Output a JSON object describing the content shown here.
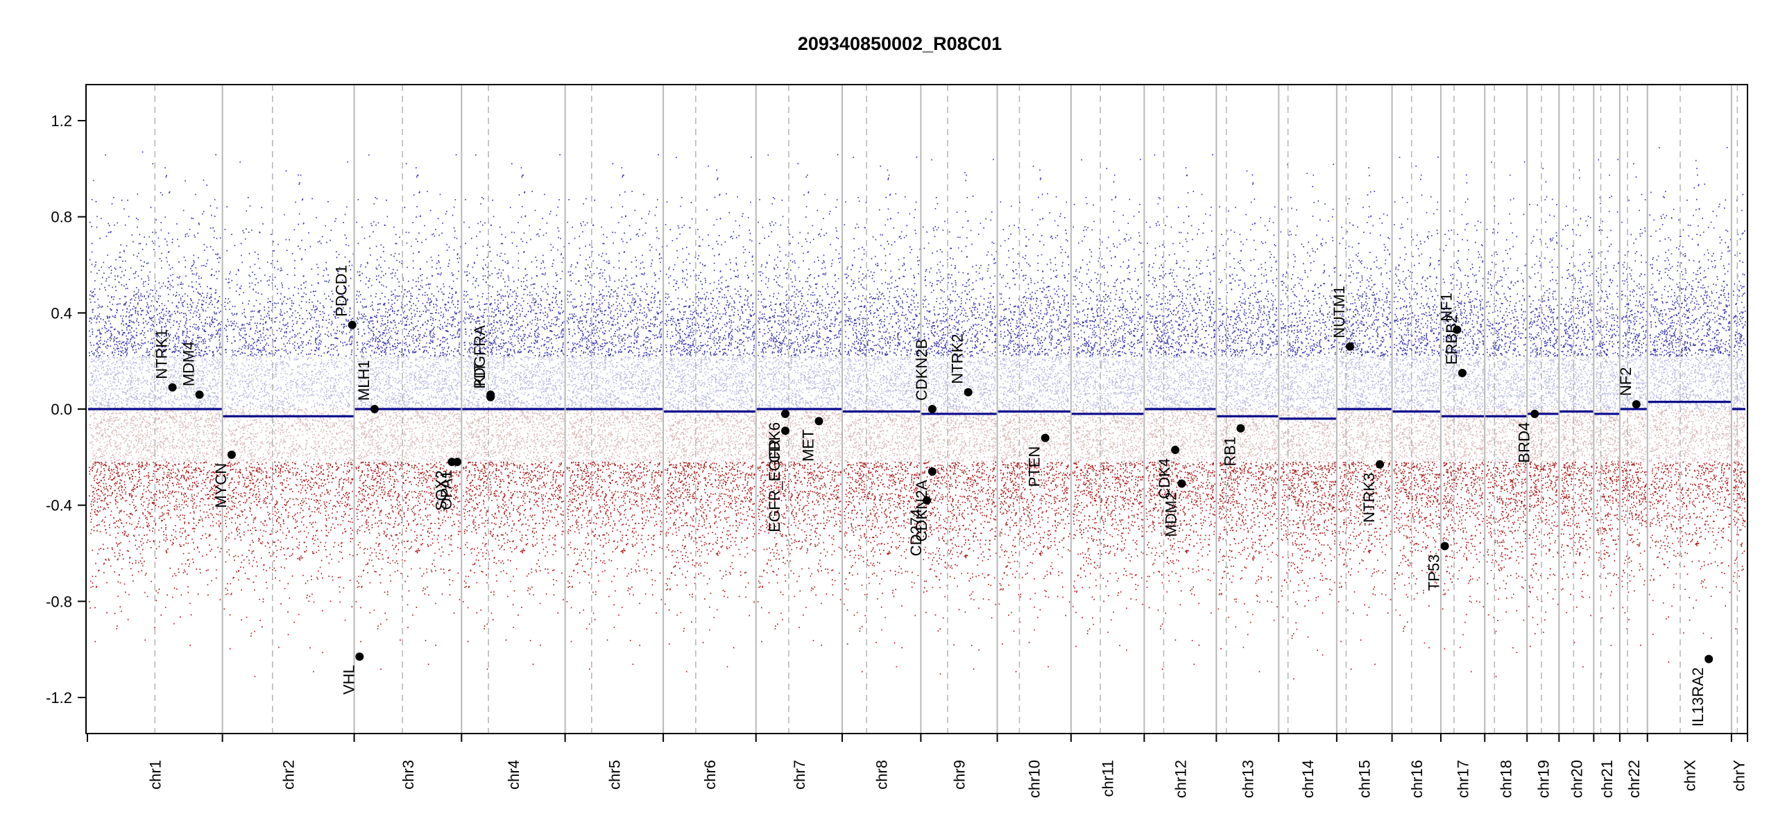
{
  "chart_data": {
    "type": "scatter",
    "title": "209340850002_R08C01",
    "ylim": [
      -1.35,
      1.35
    ],
    "yticks": [
      -1.2,
      -0.8,
      -0.4,
      0.0,
      0.4,
      0.8,
      1.2
    ],
    "ytick_labels": [
      "-1.2",
      "-0.8",
      "-0.4",
      "0.0",
      "0.4",
      "0.8",
      "1.2"
    ],
    "colors": {
      "gain": "#3b3bb3",
      "loss": "#b02020",
      "segment": "#0a0a8c",
      "gene": "#000000",
      "separator": "#b8b8b8",
      "centromere": "#b8b8b8"
    },
    "chromosomes": [
      {
        "name": "chr1",
        "length": 249,
        "centromere": 0.5,
        "segment": 0.0
      },
      {
        "name": "chr2",
        "length": 243,
        "centromere": 0.38,
        "segment": -0.03
      },
      {
        "name": "chr3",
        "length": 198,
        "centromere": 0.45,
        "segment": 0.0
      },
      {
        "name": "chr4",
        "length": 191,
        "centromere": 0.26,
        "segment": 0.0
      },
      {
        "name": "chr5",
        "length": 181,
        "centromere": 0.27,
        "segment": 0.0
      },
      {
        "name": "chr6",
        "length": 171,
        "centromere": 0.35,
        "segment": -0.01
      },
      {
        "name": "chr7",
        "length": 159,
        "centromere": 0.38,
        "segment": 0.0
      },
      {
        "name": "chr8",
        "length": 145,
        "centromere": 0.31,
        "segment": -0.01
      },
      {
        "name": "chr9",
        "length": 141,
        "centromere": 0.35,
        "segment": -0.02
      },
      {
        "name": "chr10",
        "length": 136,
        "centromere": 0.3,
        "segment": -0.01
      },
      {
        "name": "chr11",
        "length": 135,
        "centromere": 0.4,
        "segment": -0.02
      },
      {
        "name": "chr12",
        "length": 133,
        "centromere": 0.27,
        "segment": 0.0
      },
      {
        "name": "chr13",
        "length": 115,
        "centromere": 0.16,
        "segment": -0.03
      },
      {
        "name": "chr14",
        "length": 107,
        "centromere": 0.16,
        "segment": -0.04
      },
      {
        "name": "chr15",
        "length": 102,
        "centromere": 0.17,
        "segment": 0.0
      },
      {
        "name": "chr16",
        "length": 90,
        "centromere": 0.4,
        "segment": -0.01
      },
      {
        "name": "chr17",
        "length": 81,
        "centromere": 0.3,
        "segment": -0.03
      },
      {
        "name": "chr18",
        "length": 78,
        "centromere": 0.23,
        "segment": -0.03
      },
      {
        "name": "chr19",
        "length": 59,
        "centromere": 0.45,
        "segment": -0.02
      },
      {
        "name": "chr20",
        "length": 64,
        "centromere": 0.42,
        "segment": -0.01
      },
      {
        "name": "chr21",
        "length": 48,
        "centromere": 0.27,
        "segment": -0.02
      },
      {
        "name": "chr22",
        "length": 51,
        "centromere": 0.28,
        "segment": 0.0
      },
      {
        "name": "chrX",
        "length": 155,
        "centromere": 0.39,
        "segment": 0.03
      },
      {
        "name": "chrY",
        "length": 27,
        "centromere": 0.4,
        "segment": 0.0
      }
    ],
    "genes": [
      {
        "name": "NTRK1",
        "chr": "chr1",
        "pos": 0.63,
        "value": 0.09
      },
      {
        "name": "MDM4",
        "chr": "chr1",
        "pos": 0.83,
        "value": 0.06
      },
      {
        "name": "MYCN",
        "chr": "chr2",
        "pos": 0.07,
        "value": -0.19
      },
      {
        "name": "PDCD1",
        "chr": "chr2",
        "pos": 0.985,
        "value": 0.35
      },
      {
        "name": "VHL",
        "chr": "chr3",
        "pos": 0.05,
        "value": -1.03
      },
      {
        "name": "MLH1",
        "chr": "chr3",
        "pos": 0.19,
        "value": 0.0
      },
      {
        "name": "SOX2",
        "chr": "chr3",
        "pos": 0.91,
        "value": -0.22
      },
      {
        "name": "OPA1",
        "chr": "chr3",
        "pos": 0.96,
        "value": -0.22
      },
      {
        "name": "KIT",
        "chr": "chr4",
        "pos": 0.28,
        "value": 0.06
      },
      {
        "name": "PDGFRA",
        "chr": "chr4",
        "pos": 0.28,
        "value": 0.05
      },
      {
        "name": "EGFR_EGFR",
        "chr": "chr7",
        "pos": 0.34,
        "value": -0.09
      },
      {
        "name": "CDK6",
        "chr": "chr7",
        "pos": 0.34,
        "value": -0.02
      },
      {
        "name": "MET",
        "chr": "chr7",
        "pos": 0.73,
        "value": -0.05
      },
      {
        "name": "CD274",
        "chr": "chr9",
        "pos": 0.08,
        "value": -0.38
      },
      {
        "name": "CDKN2A",
        "chr": "chr9",
        "pos": 0.15,
        "value": -0.26
      },
      {
        "name": "CDKN2B",
        "chr": "chr9",
        "pos": 0.15,
        "value": 0.0
      },
      {
        "name": "NTRK2",
        "chr": "chr9",
        "pos": 0.62,
        "value": 0.07
      },
      {
        "name": "PTEN",
        "chr": "chr10",
        "pos": 0.65,
        "value": -0.12
      },
      {
        "name": "CDK4",
        "chr": "chr12",
        "pos": 0.43,
        "value": -0.17
      },
      {
        "name": "MDM2",
        "chr": "chr12",
        "pos": 0.52,
        "value": -0.31
      },
      {
        "name": "RB1",
        "chr": "chr13",
        "pos": 0.39,
        "value": -0.08
      },
      {
        "name": "NUTM1",
        "chr": "chr15",
        "pos": 0.24,
        "value": 0.26
      },
      {
        "name": "NTRK3",
        "chr": "chr15",
        "pos": 0.78,
        "value": -0.23
      },
      {
        "name": "TP53",
        "chr": "chr17",
        "pos": 0.09,
        "value": -0.57
      },
      {
        "name": "NF1",
        "chr": "chr17",
        "pos": 0.37,
        "value": 0.33
      },
      {
        "name": "ERBB2",
        "chr": "chr17",
        "pos": 0.49,
        "value": 0.15
      },
      {
        "name": "BRD4",
        "chr": "chr19",
        "pos": 0.24,
        "value": -0.02
      },
      {
        "name": "NF2",
        "chr": "chr22",
        "pos": 0.6,
        "value": 0.02
      },
      {
        "name": "IL13RA2",
        "chr": "chrX",
        "pos": 0.73,
        "value": -1.04
      }
    ]
  }
}
